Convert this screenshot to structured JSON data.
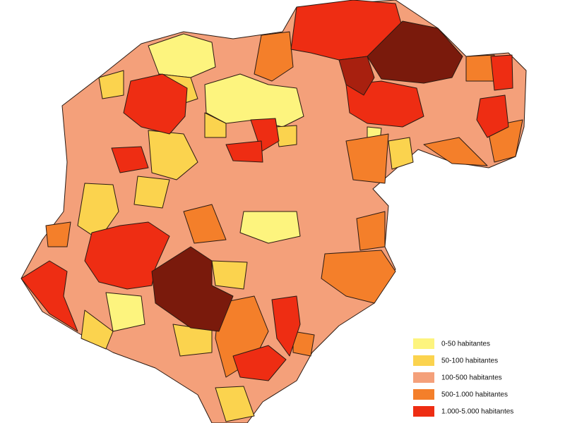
{
  "legend": {
    "items": [
      {
        "label": "0-50 habitantes",
        "color": "#fdf47e"
      },
      {
        "label": "50-100 habitantes",
        "color": "#fbd34e"
      },
      {
        "label": "100-500 habitantes",
        "color": "#f4a07a"
      },
      {
        "label": "500-1.000 habitantes",
        "color": "#f47f2a"
      },
      {
        "label": "1.000-5.000 habitantes",
        "color": "#ee2d13"
      }
    ]
  }
}
